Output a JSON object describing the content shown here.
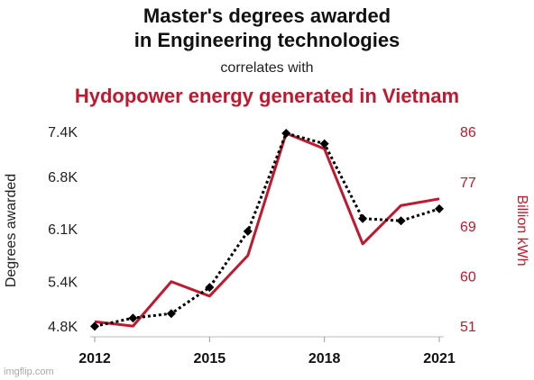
{
  "chart_data": {
    "type": "line",
    "title": [
      "Master's degrees awarded",
      "in Engineering technologies"
    ],
    "subtitle": "correlates with",
    "subtitle2": "Hydopower energy generated in Vietnam",
    "x": [
      2012,
      2013,
      2014,
      2015,
      2016,
      2017,
      2018,
      2019,
      2020,
      2021
    ],
    "xlim": [
      2012,
      2021
    ],
    "xticks": [
      2012,
      2015,
      2018,
      2021
    ],
    "ylim": [
      4800,
      7400
    ],
    "yticks": [
      {
        "value": 4800,
        "label": "4.8K"
      },
      {
        "value": 5400,
        "label": "5.4K"
      },
      {
        "value": 6100,
        "label": "6.1K"
      },
      {
        "value": 6800,
        "label": "6.8K"
      },
      {
        "value": 7400,
        "label": "7.4K"
      }
    ],
    "y2lim": [
      51,
      86
    ],
    "y2ticks": [
      51,
      60,
      69,
      77,
      86
    ],
    "ylabel": "Degrees awarded",
    "y2label": "Billion kWh",
    "series": [
      {
        "color": "#000000",
        "dashed": true,
        "markers": true,
        "values": [
          4820,
          4930,
          4990,
          5340,
          6090,
          7400,
          7260,
          6260,
          6230,
          6390
        ]
      },
      {
        "color": "#c0182e",
        "axis": "y2",
        "dashed": false,
        "markers": false,
        "values": [
          52.1,
          51.3,
          59.3,
          56.7,
          64.0,
          86,
          83.2,
          66.1,
          73.0,
          74.2
        ]
      }
    ],
    "watermark": "imgflip.com"
  }
}
